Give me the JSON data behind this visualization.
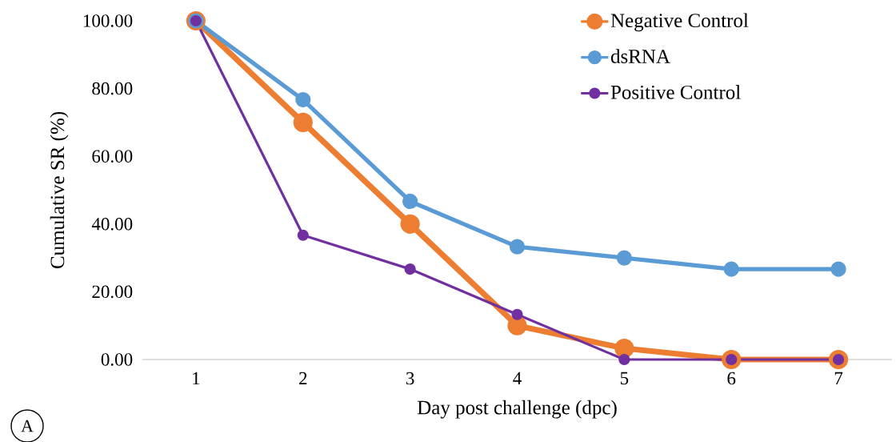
{
  "chart_data": {
    "type": "line",
    "xlabel": "Day post challenge (dpc)",
    "ylabel": "Cumulative SR (%)",
    "categories": [
      "1",
      "2",
      "3",
      "4",
      "5",
      "6",
      "7"
    ],
    "series": [
      {
        "name": "Negative Control",
        "color": "#ed7d31",
        "values": [
          100,
          70,
          40,
          10,
          3.3,
          0,
          0
        ]
      },
      {
        "name": "dsRNA",
        "color": "#5b9bd5",
        "values": [
          100,
          76.7,
          46.7,
          33.3,
          30,
          26.7,
          26.7
        ]
      },
      {
        "name": "Positive Control",
        "color": "#7030a0",
        "values": [
          100,
          36.7,
          26.7,
          13.3,
          0,
          0,
          0
        ]
      }
    ],
    "ylim": [
      0,
      100
    ],
    "yticks": [
      {
        "value": 0,
        "label": "0.00"
      },
      {
        "value": 20,
        "label": "20.00"
      },
      {
        "value": 40,
        "label": "40.00"
      },
      {
        "value": 60,
        "label": "60.00"
      },
      {
        "value": 80,
        "label": "80.00"
      },
      {
        "value": 100,
        "label": "100.00"
      }
    ],
    "legend": "top right",
    "marker": "circle",
    "line_style": "solid",
    "annotations": [
      "A"
    ]
  }
}
